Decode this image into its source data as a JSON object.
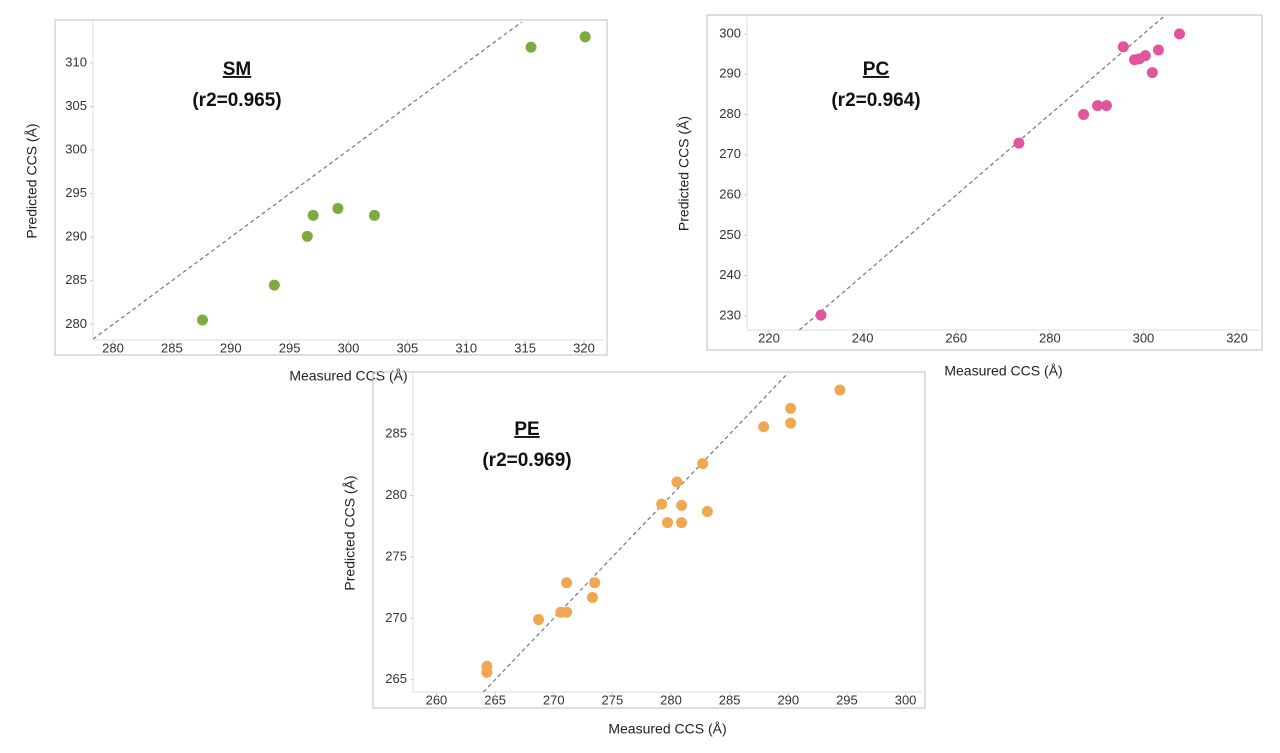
{
  "chart_data": [
    {
      "type": "scatter",
      "label": "SM",
      "annotation": "(r2=0.965)",
      "x_label": "Measured CCS (Å)",
      "y_label": "Predicted CCS (Å)",
      "color": "#7dab3e",
      "identity_line": true,
      "x": [
        287.6,
        293.7,
        296.5,
        297.0,
        299.1,
        302.2,
        315.5,
        320.1
      ],
      "values": [
        280.5,
        284.5,
        290.1,
        292.5,
        293.3,
        292.5,
        311.8,
        313.0
      ],
      "xlim": [
        278.3,
        321.7
      ],
      "ylim": [
        278.2,
        314.7
      ],
      "xticks": [
        280,
        285,
        290,
        295,
        300,
        305,
        310,
        315,
        320
      ],
      "yticks": [
        280,
        285,
        290,
        295,
        300,
        305,
        310
      ]
    },
    {
      "type": "scatter",
      "label": "PC",
      "annotation": "(r2=0.964)",
      "x_label": "Measured CCS (Å)",
      "y_label": "Predicted CCS (Å)",
      "color": "#e0559b",
      "identity_line": true,
      "x": [
        231.1,
        273.4,
        287.2,
        290.2,
        292.1,
        295.7,
        298.1,
        299.1,
        300.4,
        301.9,
        303.2,
        307.7
      ],
      "values": [
        230.2,
        272.9,
        280.0,
        282.2,
        282.2,
        296.8,
        293.6,
        293.8,
        294.6,
        290.4,
        296.0,
        300.0
      ],
      "xlim": [
        215.3,
        324.9
      ],
      "ylim": [
        226.5,
        304.2
      ],
      "xticks": [
        220,
        240,
        260,
        280,
        300,
        320
      ],
      "yticks": [
        230,
        240,
        250,
        260,
        270,
        280,
        290,
        300
      ]
    },
    {
      "type": "scatter",
      "label": "PE",
      "annotation": "(r2=0.969)",
      "x_label": "Measured CCS (Å)",
      "y_label": "Predicted CCS (Å)",
      "color": "#f0a752",
      "identity_line": true,
      "x": [
        264.3,
        264.3,
        268.7,
        270.6,
        271.1,
        271.1,
        273.3,
        273.5,
        279.2,
        279.7,
        280.5,
        280.9,
        280.9,
        282.7,
        283.1,
        287.9,
        290.2,
        290.2,
        294.4
      ],
      "values": [
        266.1,
        265.6,
        269.9,
        270.5,
        270.5,
        272.9,
        271.7,
        272.9,
        279.3,
        277.8,
        281.1,
        279.2,
        277.8,
        282.6,
        278.7,
        285.6,
        287.1,
        285.9,
        288.6
      ],
      "xlim": [
        258.0,
        301.4
      ],
      "ylim": [
        264.0,
        289.9
      ],
      "xticks": [
        260,
        265,
        270,
        275,
        280,
        285,
        290,
        295,
        300
      ],
      "yticks": [
        265,
        270,
        275,
        280,
        285
      ]
    }
  ]
}
